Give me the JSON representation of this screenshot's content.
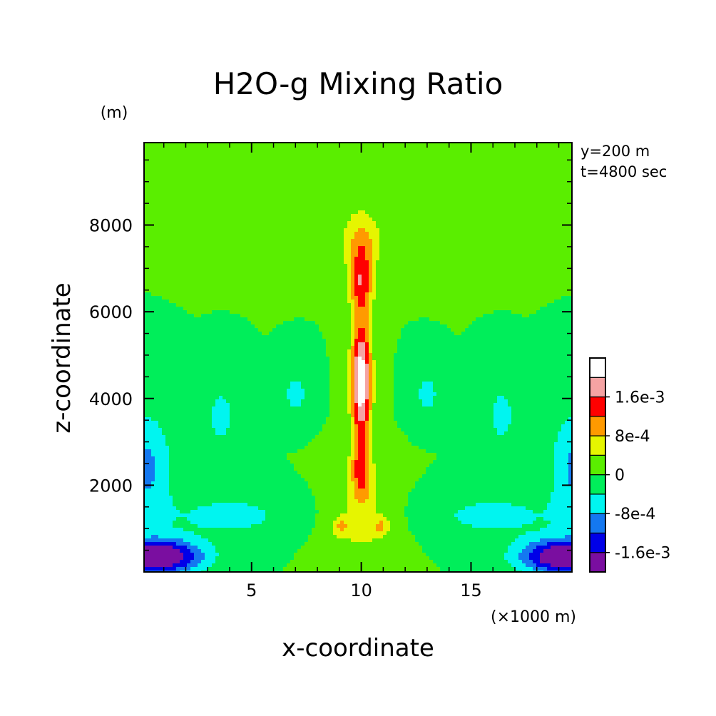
{
  "chart_data": {
    "type": "filled-contour",
    "title": "H2O-g Mixing Ratio",
    "xlabel": "x-coordinate",
    "ylabel": "z-coordinate",
    "x_unit": "(×1000 m)",
    "y_unit": "(m)",
    "info": [
      "y=200 m",
      "t=4800 sec"
    ],
    "xlim": [
      0.1,
      19.6
    ],
    "ylim": [
      0,
      9900
    ],
    "x_ticks": [
      5,
      10,
      15
    ],
    "y_ticks": [
      2000,
      4000,
      6000,
      8000
    ],
    "x_tick_labels": [
      "5",
      "10",
      "15"
    ],
    "y_tick_labels": [
      "2000",
      "4000",
      "6000",
      "8000"
    ],
    "colorbar": {
      "levels": [
        -0.002,
        -0.0016,
        -0.0012,
        -0.0008,
        -0.0004,
        0,
        0.0004,
        0.0008,
        0.0012,
        0.0016,
        0.002,
        0.0024
      ],
      "colors": [
        "#7a0ea0",
        "#0000e8",
        "#1478f0",
        "#00f5f0",
        "#00ee5a",
        "#5aee00",
        "#e6f500",
        "#ff9a00",
        "#ff0000",
        "#f5a3a3",
        "#ffffff"
      ],
      "tick_values": [
        0.0016,
        0.0008,
        0,
        -0.0008,
        -0.0016
      ],
      "tick_labels": [
        "1.6e-3",
        "8e-4",
        "0",
        "-8e-4",
        "-1.6e-3"
      ]
    },
    "field_description": "Vertical plume of positive water vapor anomaly centered at x=10 (max near z=4000-5000 m), negative anomalies near the surface at domain edges (min near x=1 and x=19, z=300 m), and weak negative lobes near z=4000 m at x=7, x=13, x=3.5 and x=16.5."
  }
}
